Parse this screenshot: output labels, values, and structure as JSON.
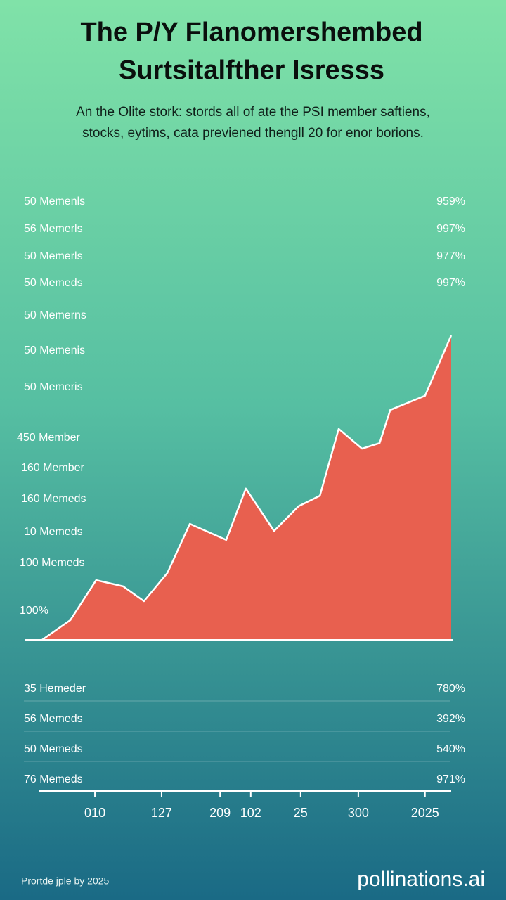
{
  "chart_data": {
    "type": "area",
    "title": [
      "The P/Y Flanomershembed",
      "Surtsitalfther Isresss"
    ],
    "subtitle": [
      "An the Olite stork: stords all of ate the PSI member saftiens,",
      "stocks, eytims, cata previened thengll 20 for enor borions."
    ],
    "x": [
      0,
      6.9,
      13.2,
      19.8,
      24.9,
      30.6,
      36.1,
      45.0,
      49.8,
      56.7,
      62.7,
      67.9,
      72.5,
      78.2,
      82.5,
      85.1,
      93.6,
      100
    ],
    "values": [
      0,
      6.4,
      19.3,
      17.3,
      12.5,
      21.6,
      37.5,
      32.3,
      48.9,
      35.2,
      43.2,
      46.6,
      68.2,
      61.8,
      63.6,
      74.3,
      78.9,
      98.4
    ],
    "xlim": [
      0,
      100
    ],
    "ylim": [
      0,
      100
    ],
    "xticks": [
      {
        "value": 12.9,
        "label": "010"
      },
      {
        "value": 29.2,
        "label": "127"
      },
      {
        "value": 43.5,
        "label": "209"
      },
      {
        "value": 51.0,
        "label": "102"
      },
      {
        "value": 63.2,
        "label": "25"
      },
      {
        "value": 77.3,
        "label": "300"
      },
      {
        "value": 93.6,
        "label": "2025"
      }
    ],
    "color": "#e8604f",
    "line_color": "#ffffff",
    "left_labels": [
      "50 Memenls",
      "56 Memerls",
      "50 Memerls",
      "50 Memeds",
      "50 Memerns",
      "50 Memenis",
      "50 Memeris",
      "450 Member",
      "160 Member",
      "160 Memeds",
      "10 Memeds",
      "100 Memeds",
      "100%"
    ],
    "right_labels": [
      "959%",
      "997%",
      "977%",
      "997%"
    ],
    "table_rows": [
      [
        "35 Hemeder",
        "780%"
      ],
      [
        "56 Memeds",
        "392%"
      ],
      [
        "50 Memeds",
        "540%"
      ],
      [
        "76 Memeds",
        "971%"
      ]
    ]
  },
  "footer": "Prortde jple by 2025",
  "watermark": "pollinations.ai"
}
